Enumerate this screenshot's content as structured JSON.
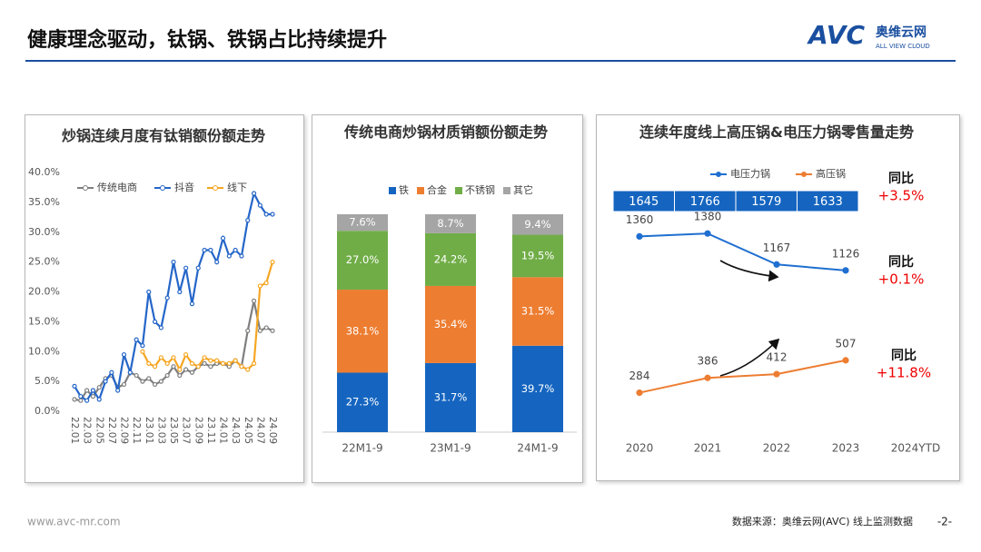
{
  "header": {
    "title": "健康理念驱动，钛锅、铁锅占比持续提升",
    "logo": "AVC",
    "logo_cn": "奥维云网",
    "logo_en": "ALL VIEW CLOUD"
  },
  "footer": {
    "website": "www.avc-mr.com",
    "source": "数据来源：奥维云网(AVC) 线上监测数据",
    "page": "-2-"
  },
  "chart_data": [
    {
      "type": "line",
      "title": "炒锅连续月度有钛销额份额走势",
      "categories": [
        "22.01",
        null,
        "22.03",
        null,
        "22.05",
        null,
        "22.07",
        null,
        "22.09",
        null,
        "22.11",
        null,
        "23.01",
        null,
        "23.03",
        null,
        "23.05",
        null,
        "23.07",
        null,
        "23.09",
        null,
        "23.11",
        null,
        "24.01",
        null,
        "24.03",
        null,
        "24.05",
        null,
        "24.07",
        null,
        "24.09"
      ],
      "series": [
        {
          "name": "传统电商",
          "color": "#7f7f7f",
          "values": [
            2.0,
            1.8,
            3.5,
            2.5,
            4.0,
            5.5,
            6.0,
            4.0,
            4.5,
            6.5,
            6.0,
            5.0,
            5.5,
            4.5,
            5.0,
            6.0,
            7.5,
            6.0,
            7.0,
            6.5,
            7.5,
            8.0,
            7.5,
            8.0,
            8.0,
            7.5,
            8.5,
            7.5,
            13.5,
            18.5,
            13.5,
            14.0,
            13.5
          ]
        },
        {
          "name": "抖音",
          "color": "#2566c8",
          "values": [
            4.2,
            2.5,
            1.8,
            3.5,
            2.0,
            5.0,
            6.5,
            3.5,
            9.5,
            6.5,
            12.0,
            11.0,
            20.0,
            15.0,
            14.0,
            19.0,
            25.0,
            20.0,
            24.0,
            18.0,
            24.0,
            27.0,
            27.0,
            25.0,
            29.0,
            26.0,
            27.0,
            26.0,
            32.0,
            36.5,
            34.5,
            33.0,
            33.0
          ]
        },
        {
          "name": "线下",
          "color": "#f5a623",
          "values": [
            null,
            null,
            null,
            null,
            null,
            null,
            null,
            null,
            null,
            null,
            null,
            10.0,
            8.0,
            7.5,
            9.0,
            8.0,
            9.0,
            7.0,
            9.5,
            8.0,
            7.5,
            9.0,
            8.5,
            8.5,
            8.0,
            8.0,
            8.5,
            7.5,
            7.0,
            8.0,
            21.0,
            21.5,
            25.0
          ]
        }
      ],
      "ylim": [
        0,
        40
      ],
      "yticks": [
        {
          "value": 0,
          "label": "0.0%"
        },
        {
          "value": 5,
          "label": "5.0%"
        },
        {
          "value": 10,
          "label": "10.0%"
        },
        {
          "value": 15,
          "label": "15.0%"
        },
        {
          "value": 20,
          "label": "20.0%"
        },
        {
          "value": 25,
          "label": "25.0%"
        },
        {
          "value": 30,
          "label": "30.0%"
        },
        {
          "value": 35,
          "label": "35.0%"
        },
        {
          "value": 40,
          "label": "40.0%"
        }
      ]
    },
    {
      "type": "stacked_bar",
      "title": "传统电商炒锅材质销额份额走势",
      "categories": [
        "22M1-9",
        "23M1-9",
        "24M1-9"
      ],
      "series": [
        {
          "name": "铁",
          "color": "#1565c0",
          "values": [
            27.3,
            31.7,
            39.7
          ],
          "value_labels": [
            "27.3%",
            "31.7%",
            "39.7%"
          ]
        },
        {
          "name": "合金",
          "color": "#ed7d31",
          "values": [
            38.1,
            35.4,
            31.5
          ],
          "value_labels": [
            "38.1%",
            "35.4%",
            "31.5%"
          ]
        },
        {
          "name": "不锈钢",
          "color": "#70ad47",
          "values": [
            27.0,
            24.2,
            19.5
          ],
          "value_labels": [
            "27.0%",
            "24.2%",
            "19.5%"
          ]
        },
        {
          "name": "其它",
          "color": "#a5a5a5",
          "values": [
            7.6,
            8.7,
            9.4
          ],
          "value_labels": [
            "7.6%",
            "8.7%",
            "9.4%"
          ]
        }
      ]
    },
    {
      "type": "line",
      "title": "连续年度线上高压锅&电压力锅零售量走势",
      "categories": [
        "2020",
        "2021",
        "2022",
        "2023",
        "2024YTD"
      ],
      "series": [
        {
          "name": "电压力锅",
          "color": "#1f6fd0",
          "values": [
            1360,
            1380,
            1167,
            1126,
            null
          ]
        },
        {
          "name": "高压锅",
          "color": "#ed7d31",
          "values": [
            284,
            386,
            412,
            507,
            null
          ]
        }
      ],
      "table_values": [
        1645,
        1766,
        1579,
        1633
      ],
      "annotations": [
        {
          "label": "同比",
          "text": "+3.5%"
        },
        {
          "label": "同比",
          "text": "+0.1%"
        },
        {
          "label": "同比",
          "text": "+11.8%"
        }
      ]
    }
  ]
}
